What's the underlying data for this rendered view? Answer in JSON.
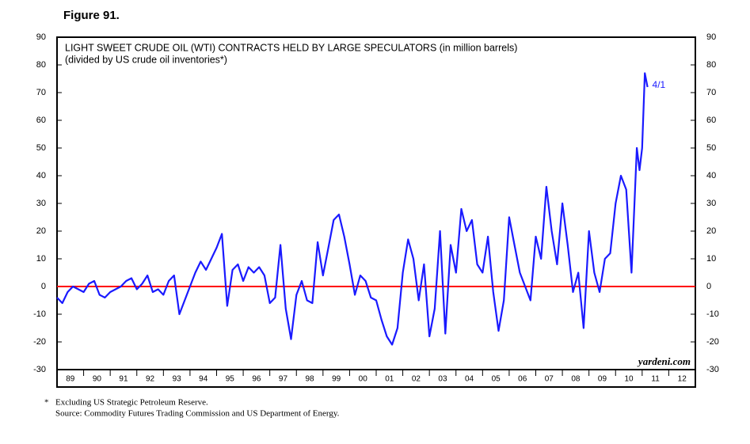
{
  "chart_data": {
    "type": "line",
    "figure_label": "Figure 91.",
    "title": "LIGHT SWEET CRUDE OIL (WTI) CONTRACTS HELD BY LARGE SPECULATORS (in million barrels)",
    "subtitle": "(divided by US crude oil inventories*)",
    "annotation": "4/1",
    "watermark": "yardeni.com",
    "footnote": "Excluding US Strategic Petroleum Reserve.",
    "footnote_marker": "*",
    "source": "Source: Commodity Futures Trading Commission and US Department of Energy.",
    "x": [
      1989.0,
      1989.2,
      1989.4,
      1989.6,
      1989.8,
      1990.0,
      1990.2,
      1990.4,
      1990.6,
      1990.8,
      1991.0,
      1991.2,
      1991.4,
      1991.6,
      1991.8,
      1992.0,
      1992.2,
      1992.4,
      1992.6,
      1992.8,
      1993.0,
      1993.2,
      1993.4,
      1993.6,
      1993.8,
      1994.0,
      1994.2,
      1994.4,
      1994.6,
      1994.8,
      1995.0,
      1995.2,
      1995.4,
      1995.6,
      1995.8,
      1996.0,
      1996.2,
      1996.4,
      1996.6,
      1996.8,
      1997.0,
      1997.2,
      1997.4,
      1997.6,
      1997.8,
      1998.0,
      1998.2,
      1998.4,
      1998.6,
      1998.8,
      1999.0,
      1999.2,
      1999.4,
      1999.6,
      1999.8,
      2000.0,
      2000.2,
      2000.4,
      2000.6,
      2000.8,
      2001.0,
      2001.2,
      2001.4,
      2001.6,
      2001.8,
      2002.0,
      2002.2,
      2002.4,
      2002.6,
      2002.8,
      2003.0,
      2003.2,
      2003.4,
      2003.6,
      2003.8,
      2004.0,
      2004.2,
      2004.4,
      2004.6,
      2004.8,
      2005.0,
      2005.2,
      2005.4,
      2005.6,
      2005.8,
      2006.0,
      2006.2,
      2006.4,
      2006.6,
      2006.8,
      2007.0,
      2007.2,
      2007.4,
      2007.6,
      2007.8,
      2008.0,
      2008.2,
      2008.4,
      2008.6,
      2008.8,
      2009.0,
      2009.2,
      2009.4,
      2009.6,
      2009.8,
      2010.0,
      2010.2,
      2010.4,
      2010.6,
      2010.8,
      2010.9,
      2011.0,
      2011.1,
      2011.2
    ],
    "series": [
      {
        "name": "Large speculators' WTI contracts / US crude inventories",
        "color": "#1a1aff",
        "values": [
          -4,
          -6,
          -2,
          0,
          -1,
          -2,
          1,
          2,
          -3,
          -4,
          -2,
          -1,
          0,
          2,
          3,
          -1,
          1,
          4,
          -2,
          -1,
          -3,
          2,
          4,
          -10,
          -5,
          0,
          5,
          9,
          6,
          10,
          14,
          19,
          -7,
          6,
          8,
          2,
          7,
          5,
          7,
          4,
          -6,
          -4,
          15,
          -8,
          -19,
          -3,
          2,
          -5,
          -6,
          16,
          4,
          14,
          24,
          26,
          18,
          8,
          -3,
          4,
          2,
          -4,
          -5,
          -12,
          -18,
          -21,
          -15,
          5,
          17,
          10,
          -5,
          8,
          -18,
          -8,
          20,
          -17,
          15,
          5,
          28,
          20,
          24,
          8,
          5,
          18,
          -2,
          -16,
          -5,
          25,
          15,
          5,
          0,
          -5,
          18,
          10,
          36,
          20,
          8,
          30,
          15,
          -2,
          5,
          -15,
          20,
          5,
          -2,
          10,
          12,
          30,
          40,
          35,
          5,
          50,
          42,
          50,
          77,
          72
        ]
      }
    ],
    "reference_line": {
      "value": 0,
      "color": "#ff0000"
    },
    "xlim": [
      1989,
      2013
    ],
    "xticks": [
      {
        "value": 1989,
        "label": "89"
      },
      {
        "value": 1990,
        "label": "90"
      },
      {
        "value": 1991,
        "label": "91"
      },
      {
        "value": 1992,
        "label": "92"
      },
      {
        "value": 1993,
        "label": "93"
      },
      {
        "value": 1994,
        "label": "94"
      },
      {
        "value": 1995,
        "label": "95"
      },
      {
        "value": 1996,
        "label": "96"
      },
      {
        "value": 1997,
        "label": "97"
      },
      {
        "value": 1998,
        "label": "98"
      },
      {
        "value": 1999,
        "label": "99"
      },
      {
        "value": 2000,
        "label": "00"
      },
      {
        "value": 2001,
        "label": "01"
      },
      {
        "value": 2002,
        "label": "02"
      },
      {
        "value": 2003,
        "label": "03"
      },
      {
        "value": 2004,
        "label": "04"
      },
      {
        "value": 2005,
        "label": "05"
      },
      {
        "value": 2006,
        "label": "06"
      },
      {
        "value": 2007,
        "label": "07"
      },
      {
        "value": 2008,
        "label": "08"
      },
      {
        "value": 2009,
        "label": "09"
      },
      {
        "value": 2010,
        "label": "10"
      },
      {
        "value": 2011,
        "label": "11"
      },
      {
        "value": 2012,
        "label": "12"
      }
    ],
    "ylim": [
      -30,
      90
    ],
    "yticks": [
      -30,
      -20,
      -10,
      0,
      10,
      20,
      30,
      40,
      50,
      60,
      70,
      80,
      90
    ]
  }
}
